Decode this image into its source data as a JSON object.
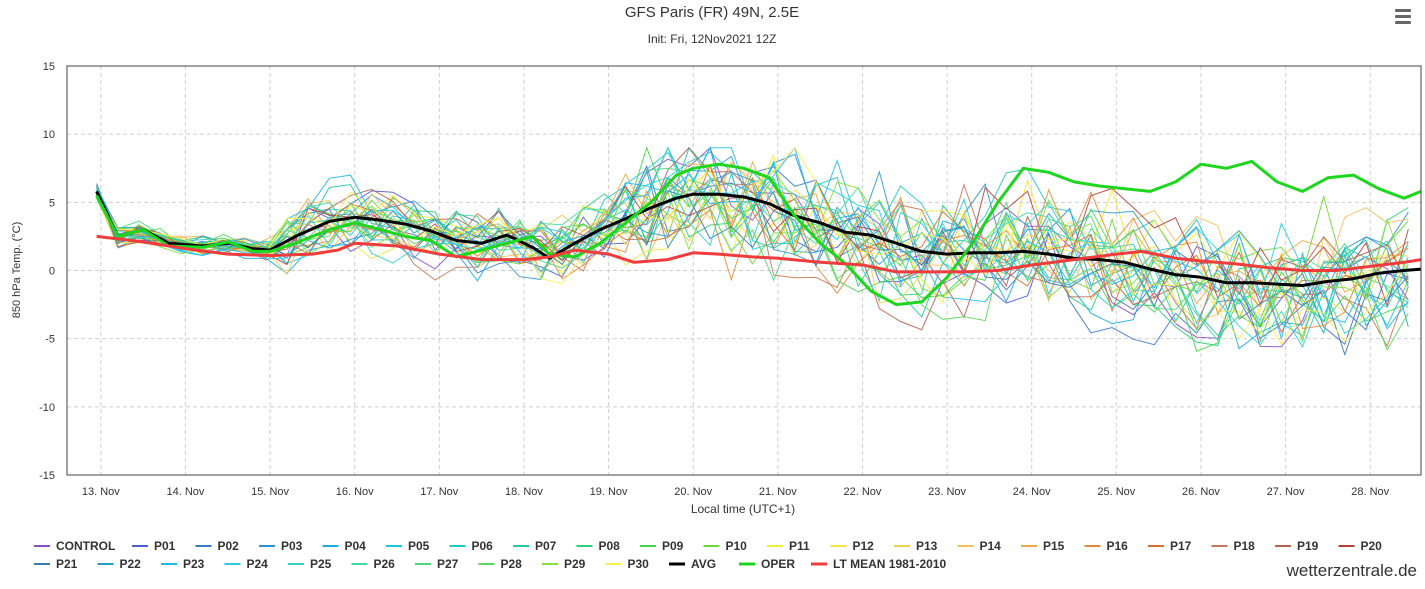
{
  "chart_data": {
    "type": "line",
    "title": "GFS Paris (FR) 49N, 2.5E",
    "subtitle": "Init: Fri, 12Nov2021 12Z",
    "xlabel": "Local time (UTC+1)",
    "ylabel": "850 hPa Temp. (°C)",
    "ylim": [
      -15,
      15
    ],
    "yticks": [
      "15",
      "10",
      "5",
      "0",
      "-5",
      "-10",
      "-15"
    ],
    "yticks_values": [
      15,
      10,
      5,
      0,
      -5,
      -10,
      -15
    ],
    "xlim": [
      12.6,
      28.6
    ],
    "x_categories": [
      "13. Nov",
      "14. Nov",
      "15. Nov",
      "16. Nov",
      "17. Nov",
      "18. Nov",
      "19. Nov",
      "20. Nov",
      "21. Nov",
      "22. Nov",
      "23. Nov",
      "24. Nov",
      "25. Nov",
      "26. Nov",
      "27. Nov",
      "28. Nov"
    ],
    "x_categories_values": [
      13,
      14,
      15,
      16,
      17,
      18,
      19,
      20,
      21,
      22,
      23,
      24,
      25,
      26,
      27,
      28
    ],
    "grid": true,
    "legend_position": "bottom",
    "series": [
      {
        "name": "CONTROL",
        "color": "#8a4fd0"
      },
      {
        "name": "P01",
        "color": "#4a5fd1"
      },
      {
        "name": "P02",
        "color": "#3a78c8"
      },
      {
        "name": "P03",
        "color": "#2a93d5"
      },
      {
        "name": "P04",
        "color": "#1aaee0"
      },
      {
        "name": "P05",
        "color": "#1cc4e8"
      },
      {
        "name": "P06",
        "color": "#20c8c0"
      },
      {
        "name": "P07",
        "color": "#22c8a0"
      },
      {
        "name": "P08",
        "color": "#28d27a"
      },
      {
        "name": "P09",
        "color": "#40d84a"
      },
      {
        "name": "P10",
        "color": "#6ad832"
      },
      {
        "name": "P11",
        "color": "#f0f030"
      },
      {
        "name": "P12",
        "color": "#f2e640"
      },
      {
        "name": "P13",
        "color": "#f2d050"
      },
      {
        "name": "P14",
        "color": "#f2c060"
      },
      {
        "name": "P15",
        "color": "#eea848"
      },
      {
        "name": "P16",
        "color": "#e88838"
      },
      {
        "name": "P17",
        "color": "#d87030"
      },
      {
        "name": "P18",
        "color": "#c87858"
      },
      {
        "name": "P19",
        "color": "#b86050"
      },
      {
        "name": "P20",
        "color": "#b84038"
      },
      {
        "name": "P21",
        "color": "#3a78a8"
      },
      {
        "name": "P22",
        "color": "#2a9ac8"
      },
      {
        "name": "P23",
        "color": "#20b8e8"
      },
      {
        "name": "P24",
        "color": "#28cce0"
      },
      {
        "name": "P25",
        "color": "#30d0c8"
      },
      {
        "name": "P26",
        "color": "#40d8a8"
      },
      {
        "name": "P27",
        "color": "#48d880"
      },
      {
        "name": "P28",
        "color": "#58d858"
      },
      {
        "name": "P29",
        "color": "#88e040"
      },
      {
        "name": "P30",
        "color": "#f8f050"
      },
      {
        "name": "AVG",
        "color": "#000000",
        "values": [
          [
            12.95,
            5.8
          ],
          [
            13.2,
            2.5
          ],
          [
            13.5,
            3.0
          ],
          [
            13.8,
            2.0
          ],
          [
            14.2,
            1.8
          ],
          [
            14.5,
            2.0
          ],
          [
            14.8,
            1.6
          ],
          [
            15.0,
            1.5
          ],
          [
            15.3,
            2.5
          ],
          [
            15.7,
            3.6
          ],
          [
            16.0,
            3.9
          ],
          [
            16.3,
            3.7
          ],
          [
            16.6,
            3.4
          ],
          [
            16.9,
            2.9
          ],
          [
            17.2,
            2.2
          ],
          [
            17.5,
            2.0
          ],
          [
            17.8,
            2.6
          ],
          [
            18.1,
            1.7
          ],
          [
            18.3,
            0.9
          ],
          [
            18.6,
            2.0
          ],
          [
            18.9,
            3.0
          ],
          [
            19.2,
            3.8
          ],
          [
            19.5,
            4.6
          ],
          [
            19.8,
            5.3
          ],
          [
            20.0,
            5.6
          ],
          [
            20.3,
            5.6
          ],
          [
            20.6,
            5.4
          ],
          [
            20.9,
            4.9
          ],
          [
            21.2,
            4.0
          ],
          [
            21.5,
            3.5
          ],
          [
            21.8,
            2.8
          ],
          [
            22.1,
            2.6
          ],
          [
            22.4,
            2.0
          ],
          [
            22.7,
            1.4
          ],
          [
            23.0,
            1.2
          ],
          [
            23.3,
            1.3
          ],
          [
            23.6,
            1.3
          ],
          [
            23.9,
            1.4
          ],
          [
            24.2,
            1.2
          ],
          [
            24.5,
            0.9
          ],
          [
            24.8,
            0.8
          ],
          [
            25.1,
            0.6
          ],
          [
            25.4,
            0.1
          ],
          [
            25.7,
            -0.3
          ],
          [
            26.0,
            -0.5
          ],
          [
            26.3,
            -0.9
          ],
          [
            26.6,
            -0.9
          ],
          [
            26.9,
            -1.0
          ],
          [
            27.2,
            -1.1
          ],
          [
            27.5,
            -0.8
          ],
          [
            27.8,
            -0.6
          ],
          [
            28.1,
            -0.2
          ],
          [
            28.4,
            0.0
          ],
          [
            28.6,
            0.1
          ]
        ]
      },
      {
        "name": "OPER",
        "color": "#1ed61e",
        "values": [
          [
            12.95,
            5.5
          ],
          [
            13.2,
            2.5
          ],
          [
            13.5,
            3.0
          ],
          [
            13.8,
            1.8
          ],
          [
            14.2,
            1.7
          ],
          [
            14.5,
            2.1
          ],
          [
            14.8,
            1.4
          ],
          [
            15.0,
            1.4
          ],
          [
            15.3,
            2.0
          ],
          [
            15.7,
            3.0
          ],
          [
            16.0,
            3.5
          ],
          [
            16.3,
            3.0
          ],
          [
            16.6,
            2.5
          ],
          [
            16.9,
            2.2
          ],
          [
            17.2,
            1.0
          ],
          [
            17.5,
            1.5
          ],
          [
            17.8,
            2.0
          ],
          [
            18.1,
            2.5
          ],
          [
            18.3,
            1.2
          ],
          [
            18.6,
            1.0
          ],
          [
            18.9,
            2.0
          ],
          [
            19.2,
            3.5
          ],
          [
            19.5,
            5.0
          ],
          [
            19.8,
            7.0
          ],
          [
            20.0,
            7.5
          ],
          [
            20.3,
            7.8
          ],
          [
            20.6,
            7.5
          ],
          [
            20.9,
            6.8
          ],
          [
            21.2,
            4.0
          ],
          [
            21.5,
            2.0
          ],
          [
            21.8,
            0.5
          ],
          [
            22.1,
            -1.5
          ],
          [
            22.4,
            -2.5
          ],
          [
            22.7,
            -2.3
          ],
          [
            23.0,
            -0.5
          ],
          [
            23.3,
            2.0
          ],
          [
            23.6,
            5.0
          ],
          [
            23.9,
            7.5
          ],
          [
            24.2,
            7.2
          ],
          [
            24.5,
            6.5
          ],
          [
            24.8,
            6.2
          ],
          [
            25.1,
            6.0
          ],
          [
            25.4,
            5.8
          ],
          [
            25.7,
            6.5
          ],
          [
            26.0,
            7.8
          ],
          [
            26.3,
            7.5
          ],
          [
            26.6,
            8.0
          ],
          [
            26.9,
            6.5
          ],
          [
            27.2,
            5.8
          ],
          [
            27.5,
            6.8
          ],
          [
            27.8,
            7.0
          ],
          [
            28.1,
            6.0
          ],
          [
            28.4,
            5.3
          ],
          [
            28.6,
            5.8
          ]
        ]
      },
      {
        "name": "LT MEAN 1981-2010",
        "color": "#f03c3c",
        "values": [
          [
            12.95,
            2.5
          ],
          [
            13.5,
            2.1
          ],
          [
            14.0,
            1.6
          ],
          [
            14.5,
            1.2
          ],
          [
            15.0,
            1.1
          ],
          [
            15.5,
            1.2
          ],
          [
            15.8,
            1.5
          ],
          [
            16.0,
            2.0
          ],
          [
            16.5,
            1.8
          ],
          [
            17.0,
            1.2
          ],
          [
            17.5,
            0.8
          ],
          [
            18.0,
            0.8
          ],
          [
            18.3,
            1.0
          ],
          [
            18.6,
            1.5
          ],
          [
            19.0,
            1.2
          ],
          [
            19.3,
            0.6
          ],
          [
            19.7,
            0.8
          ],
          [
            20.0,
            1.3
          ],
          [
            20.3,
            1.2
          ],
          [
            20.7,
            1.0
          ],
          [
            21.0,
            0.9
          ],
          [
            21.5,
            0.6
          ],
          [
            22.0,
            0.4
          ],
          [
            22.4,
            -0.1
          ],
          [
            22.8,
            -0.1
          ],
          [
            23.2,
            -0.1
          ],
          [
            23.6,
            0.0
          ],
          [
            24.0,
            0.4
          ],
          [
            24.5,
            0.8
          ],
          [
            25.0,
            1.2
          ],
          [
            25.3,
            1.4
          ],
          [
            25.7,
            0.9
          ],
          [
            26.0,
            0.7
          ],
          [
            26.4,
            0.5
          ],
          [
            26.8,
            0.2
          ],
          [
            27.2,
            0.0
          ],
          [
            27.6,
            0.0
          ],
          [
            28.0,
            0.3
          ],
          [
            28.4,
            0.6
          ],
          [
            28.6,
            0.8
          ]
        ]
      }
    ]
  },
  "footer": {
    "brand": "wetterzentrale.de"
  }
}
